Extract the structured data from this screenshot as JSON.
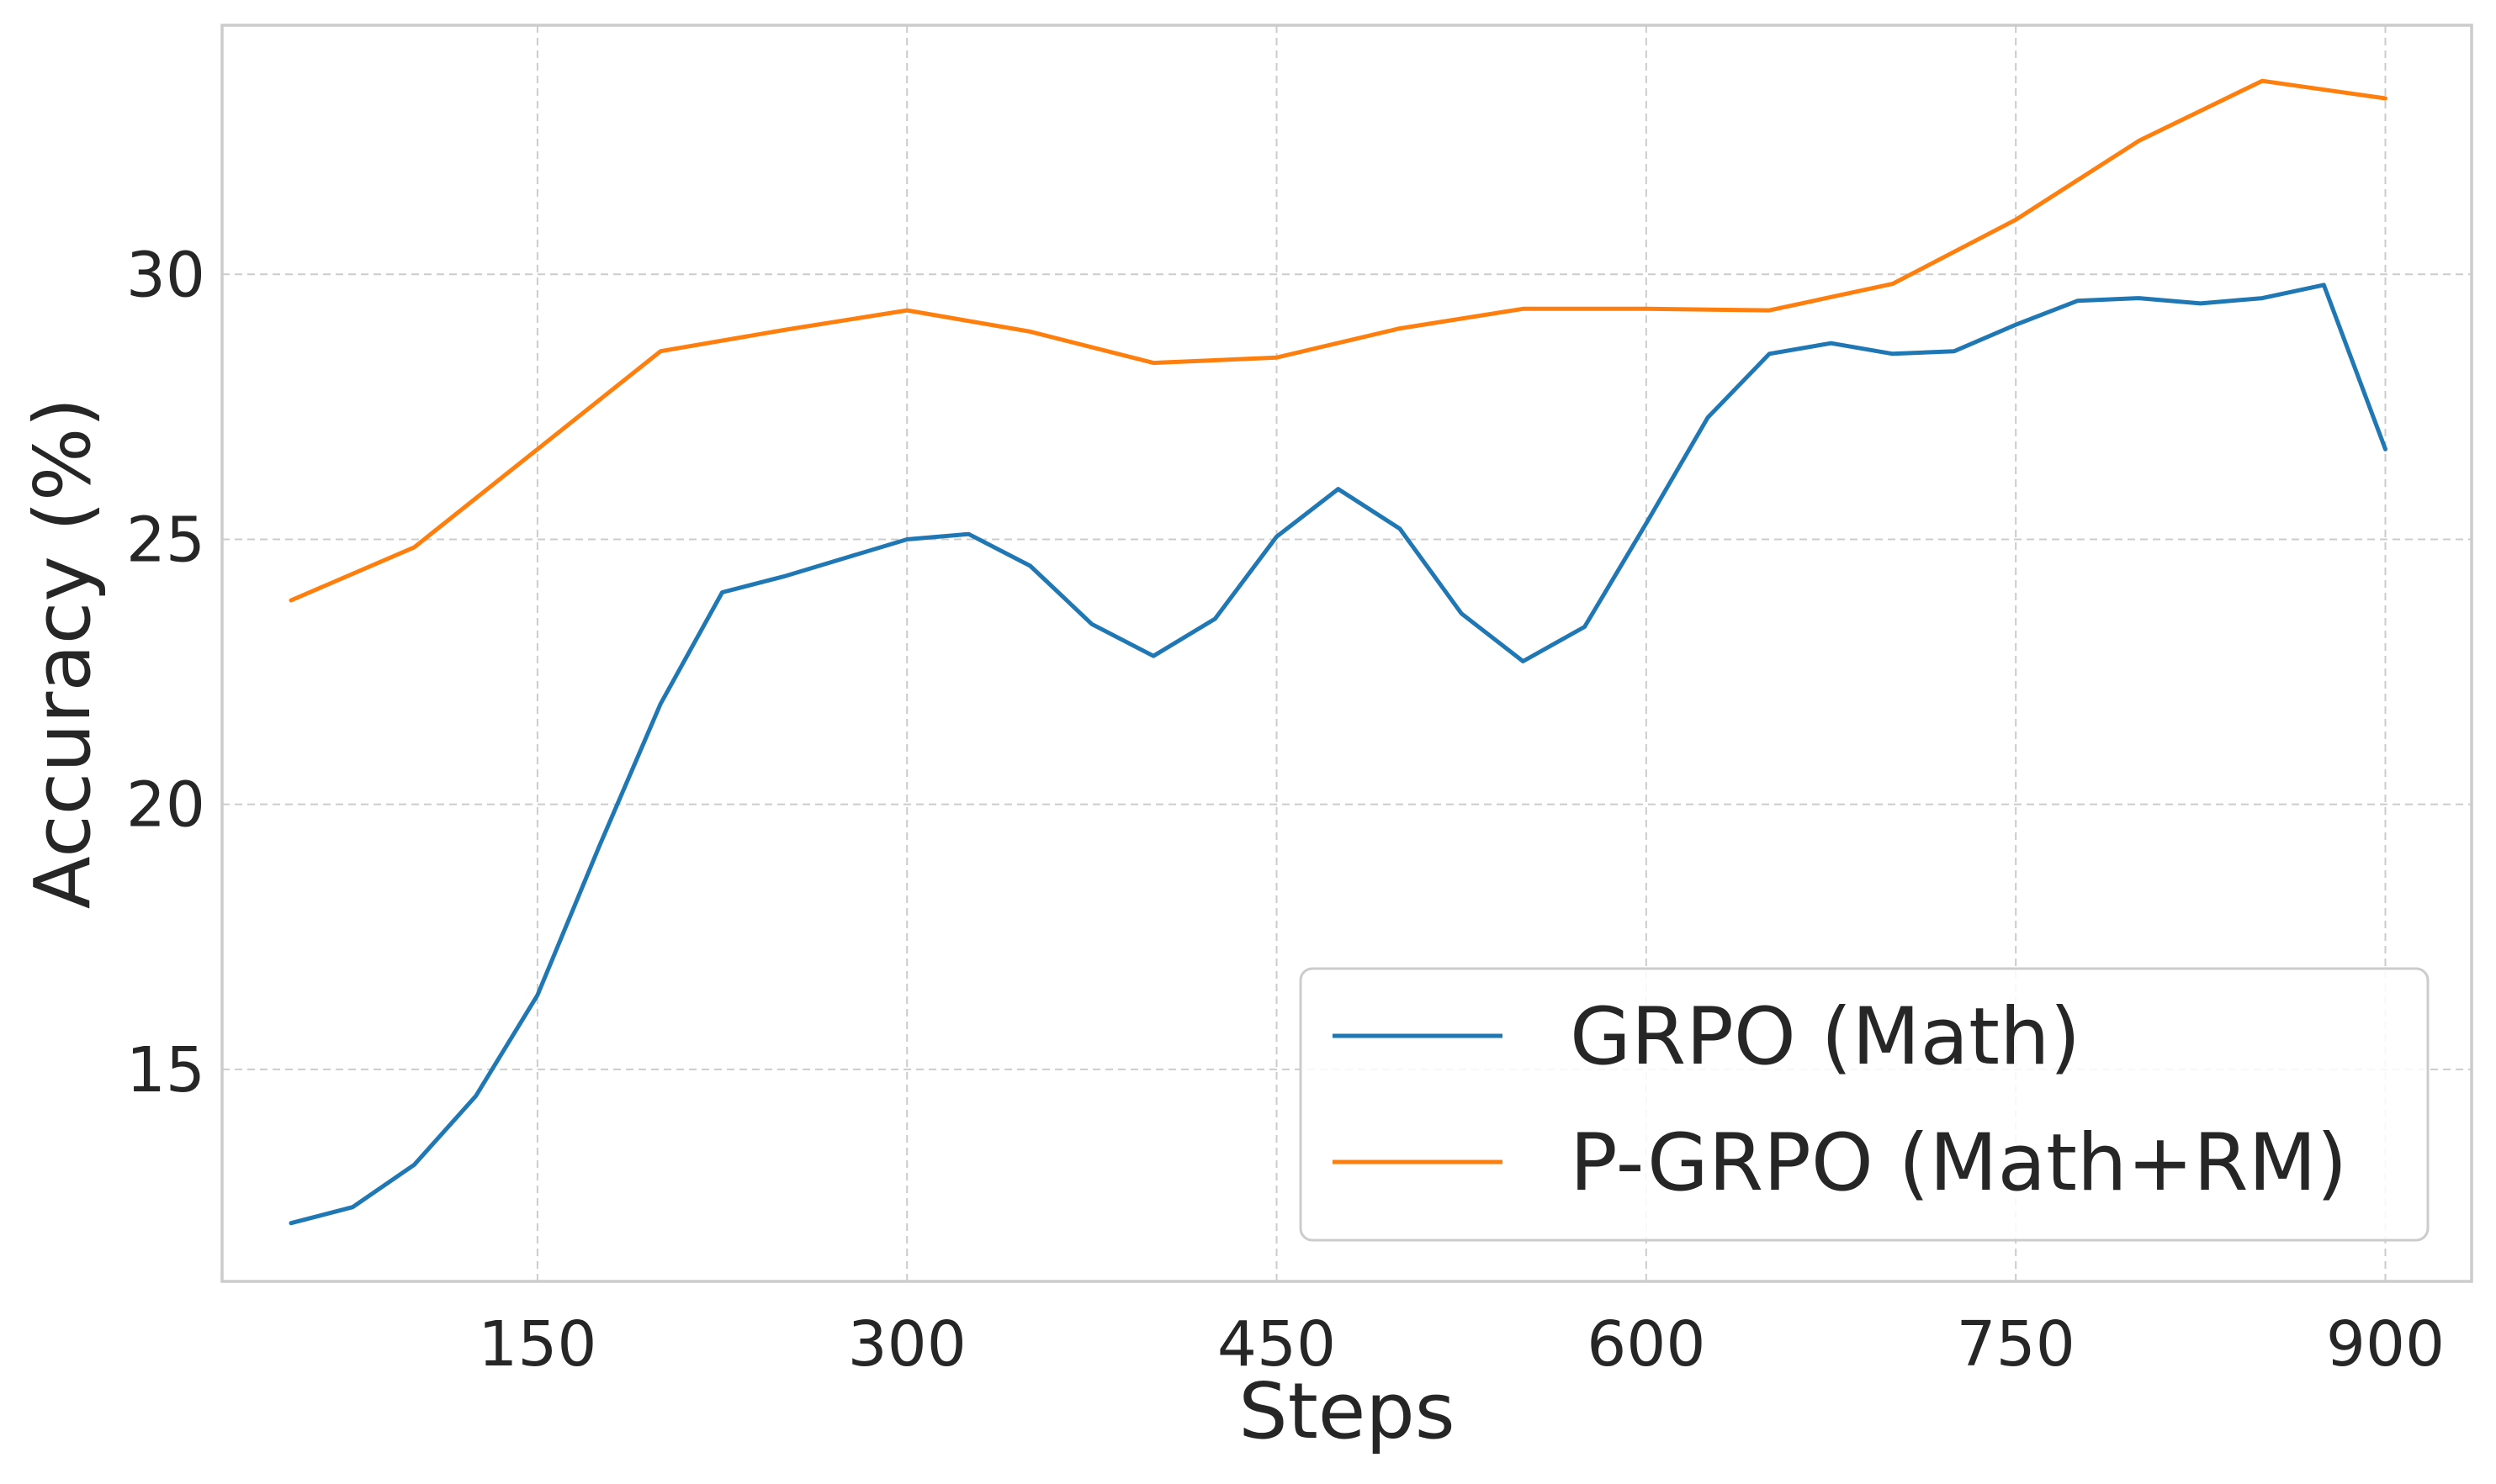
{
  "chart_data": {
    "type": "line",
    "title": "",
    "xlabel": "Steps",
    "ylabel": "Accuracy (%)",
    "xlim": [
      22,
      935
    ],
    "ylim": [
      11.0,
      34.7
    ],
    "xticks": [
      150,
      300,
      450,
      600,
      750,
      900
    ],
    "yticks": [
      15,
      20,
      25,
      30
    ],
    "grid": true,
    "legend_position": "lower right",
    "series": [
      {
        "name": "GRPO (Math)",
        "color": "#1f77b4",
        "x": [
          50,
          75,
          100,
          125,
          150,
          175,
          200,
          225,
          250,
          275,
          300,
          325,
          350,
          375,
          400,
          425,
          450,
          475,
          500,
          525,
          550,
          575,
          600,
          625,
          650,
          675,
          700,
          725,
          750,
          775,
          800,
          825,
          850,
          875,
          900
        ],
        "y": [
          12.1,
          12.4,
          13.2,
          14.5,
          16.4,
          19.2,
          21.9,
          24.0,
          24.3,
          24.65,
          25.0,
          25.1,
          24.5,
          23.4,
          22.8,
          23.5,
          25.05,
          25.95,
          25.2,
          23.6,
          22.7,
          23.35,
          25.3,
          27.3,
          28.5,
          28.7,
          28.5,
          28.55,
          29.05,
          29.5,
          29.55,
          29.45,
          29.55,
          29.8,
          26.7
        ]
      },
      {
        "name": "P-GRPO (Math+RM)",
        "color": "#ff7f0e",
        "x": [
          50,
          100,
          150,
          200,
          250,
          300,
          350,
          400,
          450,
          500,
          550,
          600,
          650,
          700,
          750,
          800,
          850,
          900
        ],
        "y": [
          23.85,
          24.85,
          26.7,
          28.55,
          28.95,
          29.32,
          28.92,
          28.33,
          28.43,
          28.98,
          29.35,
          29.35,
          29.32,
          29.82,
          31.03,
          32.52,
          33.65,
          33.32
        ]
      }
    ]
  }
}
